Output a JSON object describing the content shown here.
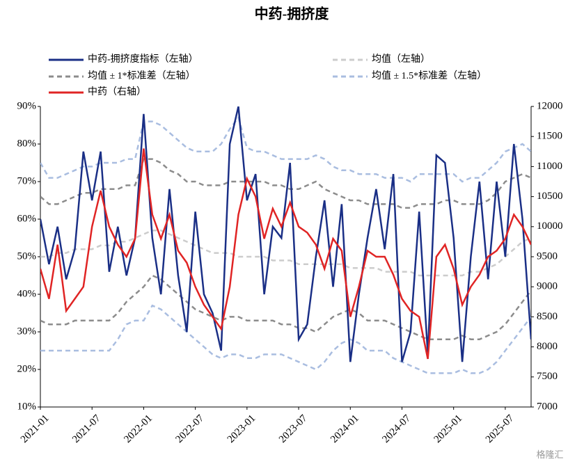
{
  "chart_data": {
    "type": "line",
    "title": "中药-拥挤度",
    "x": [
      "2021-01",
      "2021-02",
      "2021-03",
      "2021-04",
      "2021-05",
      "2021-06",
      "2021-07",
      "2021-08",
      "2021-09",
      "2021-10",
      "2021-11",
      "2021-12",
      "2022-01",
      "2022-02",
      "2022-03",
      "2022-04",
      "2022-05",
      "2022-06",
      "2022-07",
      "2022-08",
      "2022-09",
      "2022-10",
      "2022-11",
      "2022-12",
      "2023-01",
      "2023-02",
      "2023-03",
      "2023-04",
      "2023-05",
      "2023-06",
      "2023-07",
      "2023-08",
      "2023-09",
      "2023-10",
      "2023-11",
      "2023-12",
      "2024-01",
      "2024-02",
      "2024-03",
      "2024-04",
      "2024-05",
      "2024-06",
      "2024-07",
      "2024-08",
      "2024-09",
      "2024-10",
      "2024-11",
      "2024-12",
      "2025-01",
      "2025-02",
      "2025-03",
      "2025-04",
      "2025-05",
      "2025-06",
      "2025-07",
      "2025-08",
      "2025-09",
      "2025-10"
    ],
    "xlim": [
      "2021-01",
      "2025-10"
    ],
    "xticks": [
      "2021-01",
      "2021-07",
      "2022-01",
      "2022-07",
      "2023-01",
      "2023-07",
      "2024-01",
      "2024-07",
      "2025-01",
      "2025-07"
    ],
    "ylim": [
      10,
      90
    ],
    "yticks": [
      {
        "value": 10,
        "label": "10%"
      },
      {
        "value": 20,
        "label": "20%"
      },
      {
        "value": 30,
        "label": "30%"
      },
      {
        "value": 40,
        "label": "40%"
      },
      {
        "value": 50,
        "label": "50%"
      },
      {
        "value": 60,
        "label": "60%"
      },
      {
        "value": 70,
        "label": "70%"
      },
      {
        "value": 80,
        "label": "80%"
      },
      {
        "value": 90,
        "label": "90%"
      }
    ],
    "y2lim": [
      7000,
      12000
    ],
    "y2ticks": [
      7000,
      7500,
      8000,
      8500,
      9000,
      9500,
      10000,
      10500,
      11000,
      11500,
      12000
    ],
    "series": [
      {
        "name": "中药-拥挤度指标（左轴）",
        "color": "#1a2f86",
        "dash": false,
        "values": [
          60,
          48,
          58,
          44,
          52,
          78,
          65,
          78,
          46,
          58,
          45,
          55,
          88,
          55,
          40,
          68,
          45,
          30,
          62,
          40,
          35,
          25,
          80,
          90,
          65,
          72,
          40,
          58,
          55,
          75,
          28,
          32,
          50,
          65,
          42,
          64,
          22,
          40,
          55,
          68,
          52,
          72,
          22,
          30,
          62,
          24,
          77,
          75,
          55,
          22,
          50,
          70,
          44,
          70,
          50,
          80,
          60,
          28
        ]
      },
      {
        "name": "均值（左轴）",
        "color": "#cccccc",
        "dash": true,
        "values": [
          50,
          50,
          51,
          51,
          52,
          52,
          52,
          53,
          53,
          54,
          54,
          55,
          56,
          57,
          57,
          56,
          55,
          54,
          53,
          52,
          51,
          51,
          51,
          50,
          50,
          50,
          50,
          49,
          49,
          49,
          48,
          48,
          48,
          48,
          48,
          48,
          47,
          47,
          47,
          47,
          46,
          46,
          46,
          46,
          45,
          45,
          45,
          45,
          45,
          45,
          46,
          46,
          47,
          48,
          50,
          52,
          54,
          55
        ]
      },
      {
        "name": "均值 ± 1*标准差（左轴）",
        "color": "#8c8c8c",
        "dash": true,
        "values": [
          66,
          64,
          64,
          65,
          66,
          67,
          67,
          68,
          68,
          68,
          69,
          69,
          76,
          76,
          75,
          73,
          72,
          70,
          70,
          69,
          69,
          69,
          70,
          70,
          70,
          70,
          70,
          69,
          69,
          68,
          68,
          69,
          70,
          68,
          67,
          66,
          65,
          65,
          64,
          64,
          64,
          64,
          63,
          63,
          64,
          64,
          64,
          65,
          65,
          64,
          64,
          64,
          65,
          67,
          70,
          71,
          72,
          71
        ]
      },
      {
        "name": "均值 ± 1*标准差（左轴）",
        "color": "#8c8c8c",
        "dash": true,
        "values": [
          33,
          32,
          32,
          32,
          33,
          33,
          33,
          33,
          33,
          35,
          38,
          40,
          42,
          45,
          44,
          42,
          40,
          38,
          36,
          35,
          34,
          33,
          34,
          34,
          33,
          33,
          33,
          33,
          32,
          32,
          31,
          31,
          30,
          32,
          34,
          35,
          36,
          35,
          33,
          33,
          33,
          32,
          31,
          30,
          29,
          28,
          28,
          28,
          28,
          29,
          28,
          28,
          29,
          30,
          32,
          35,
          38,
          41
        ]
      },
      {
        "name": "均值 ± 1.5*标准差（左轴）",
        "color": "#a9bde0",
        "dash": true,
        "values": [
          75,
          71,
          71,
          72,
          73,
          74,
          74,
          75,
          75,
          75,
          76,
          76,
          86,
          86,
          85,
          83,
          81,
          79,
          78,
          78,
          78,
          80,
          84,
          87,
          79,
          78,
          78,
          77,
          76,
          76,
          76,
          76,
          77,
          76,
          74,
          73,
          73,
          72,
          72,
          72,
          71,
          71,
          71,
          70,
          72,
          72,
          72,
          72,
          72,
          70,
          71,
          71,
          73,
          75,
          78,
          79,
          80,
          78
        ]
      },
      {
        "name": "均值 ± 1.5*标准差（左轴）",
        "color": "#a9bde0",
        "dash": true,
        "values": [
          25,
          25,
          25,
          25,
          25,
          25,
          25,
          25,
          25,
          28,
          32,
          33,
          33,
          37,
          36,
          34,
          32,
          30,
          28,
          26,
          24,
          23,
          24,
          24,
          23,
          23,
          24,
          24,
          24,
          23,
          22,
          21,
          20,
          22,
          25,
          27,
          28,
          27,
          25,
          25,
          25,
          23,
          22,
          21,
          20,
          19,
          19,
          19,
          19,
          20,
          19,
          19,
          20,
          22,
          25,
          28,
          31,
          34
        ]
      },
      {
        "name": "中药（右轴）",
        "color": "#e02424",
        "dash": false,
        "axis": "y2",
        "values": [
          9300,
          8800,
          9700,
          8600,
          8800,
          9000,
          10000,
          10600,
          10000,
          9700,
          9500,
          9800,
          11300,
          10200,
          9800,
          10200,
          9600,
          9400,
          9000,
          8700,
          8500,
          8300,
          9000,
          10200,
          10800,
          10500,
          9800,
          10300,
          10000,
          10400,
          10000,
          9900,
          9700,
          9300,
          9800,
          9600,
          8500,
          9000,
          9600,
          9500,
          9500,
          9200,
          8800,
          8600,
          8500,
          7800,
          9500,
          9700,
          9300,
          8700,
          9000,
          9200,
          9500,
          9600,
          9800,
          10200,
          10000,
          9700
        ]
      }
    ],
    "watermark": "格隆汇"
  }
}
